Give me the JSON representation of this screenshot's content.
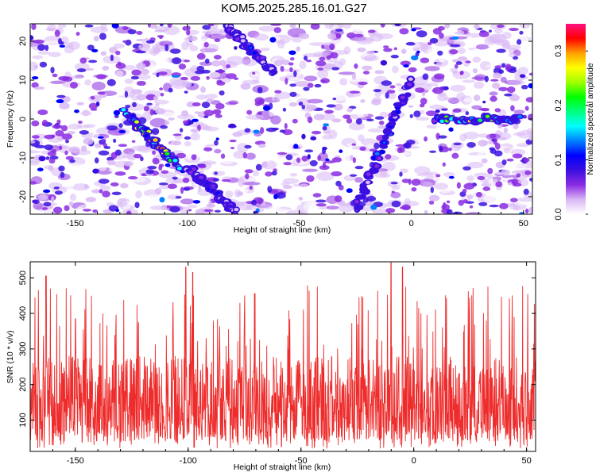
{
  "title": "KOM5.2025.285.16.01.G27",
  "chart_data": [
    {
      "type": "heatmap",
      "xlabel": "Height of straight line (km)",
      "ylabel": "Frequency (Hz)",
      "xlim": [
        -170,
        54
      ],
      "ylim": [
        -24.5,
        24.5
      ],
      "xticks": [
        -150,
        -100,
        -50,
        0,
        50
      ],
      "yticks": [
        -20,
        -10,
        0,
        10,
        20
      ],
      "colorbar": {
        "label": "Normalized spectral amplitude",
        "range": [
          0,
          0.35
        ],
        "ticks": [
          0.0,
          0.1,
          0.2,
          0.3
        ],
        "colors": [
          "#ffffff",
          "#d9b8f5",
          "#8a2be2",
          "#3a10e0",
          "#0000ff",
          "#0080ff",
          "#00ffff",
          "#00ff80",
          "#00ff00",
          "#a0ff00",
          "#ffff00",
          "#ffa000",
          "#ff0000",
          "#ff1080"
        ]
      },
      "features": [
        {
          "x": [
            -128,
            -104
          ],
          "y": [
            2,
            -12
          ],
          "peak": 0.33
        },
        {
          "x": [
            -100,
            -78
          ],
          "y": [
            -12,
            -24
          ],
          "peak": 0.12
        },
        {
          "x": [
            -82,
            -62
          ],
          "y": [
            24,
            12
          ],
          "peak": 0.14
        },
        {
          "x": [
            -25,
            0
          ],
          "y": [
            -23,
            10
          ],
          "peak": 0.15
        },
        {
          "x": [
            10,
            48
          ],
          "y": [
            0,
            0
          ],
          "peak": 0.3
        }
      ]
    },
    {
      "type": "line",
      "xlabel": "Height of straight line (km)",
      "ylabel": "SNR (10 * v/v)",
      "xlim": [
        -170,
        54
      ],
      "ylim": [
        12,
        545
      ],
      "xticks": [
        -150,
        -100,
        -50,
        0,
        50
      ],
      "yticks": [
        100,
        200,
        300,
        400,
        500
      ],
      "series": [
        {
          "color": "#ee2c2c",
          "summary": {
            "x_start": -170,
            "x_end": 54,
            "typical_range": [
              40,
              280
            ],
            "peaks": [
              [
                -163,
                505
              ],
              [
                -101,
                530
              ],
              [
                -98,
                515
              ],
              [
                -10,
                545
              ],
              [
                -5,
                530
              ]
            ]
          }
        }
      ]
    }
  ]
}
